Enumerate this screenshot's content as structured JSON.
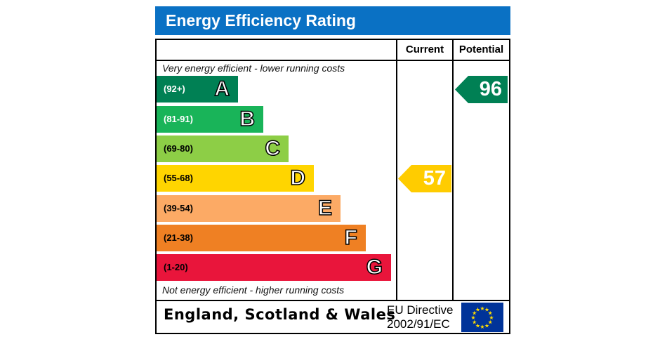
{
  "title": "Energy Efficiency Rating",
  "columns": {
    "current": "Current",
    "potential": "Potential"
  },
  "notes": {
    "top": "Very energy efficient - lower running costs",
    "bottom": "Not energy efficient - higher running costs"
  },
  "chart_data": {
    "type": "bar",
    "categories": [
      "A",
      "B",
      "C",
      "D",
      "E",
      "F",
      "G"
    ],
    "bands": [
      {
        "letter": "A",
        "range": "(92+)",
        "color": "#008054",
        "range_color": "#ffffff"
      },
      {
        "letter": "B",
        "range": "(81-91)",
        "color": "#19b459",
        "range_color": "#ffffff"
      },
      {
        "letter": "C",
        "range": "(69-80)",
        "color": "#8dce46",
        "range_color": "#000000"
      },
      {
        "letter": "D",
        "range": "(55-68)",
        "color": "#ffd500",
        "range_color": "#000000"
      },
      {
        "letter": "E",
        "range": "(39-54)",
        "color": "#fcaa65",
        "range_color": "#000000"
      },
      {
        "letter": "F",
        "range": "(21-38)",
        "color": "#ef8023",
        "range_color": "#000000"
      },
      {
        "letter": "G",
        "range": "(1-20)",
        "color": "#e9153b",
        "range_color": "#000000"
      }
    ],
    "current": {
      "value": "57",
      "band": "D",
      "color": "#ffcc00"
    },
    "potential": {
      "value": "96",
      "band": "A",
      "color": "#008054"
    }
  },
  "footer": {
    "region": "England, Scotland & Wales",
    "directive_line1": "EU Directive",
    "directive_line2": "2002/91/EC",
    "flag_color": "#003399",
    "star_color": "#ffdd00"
  }
}
